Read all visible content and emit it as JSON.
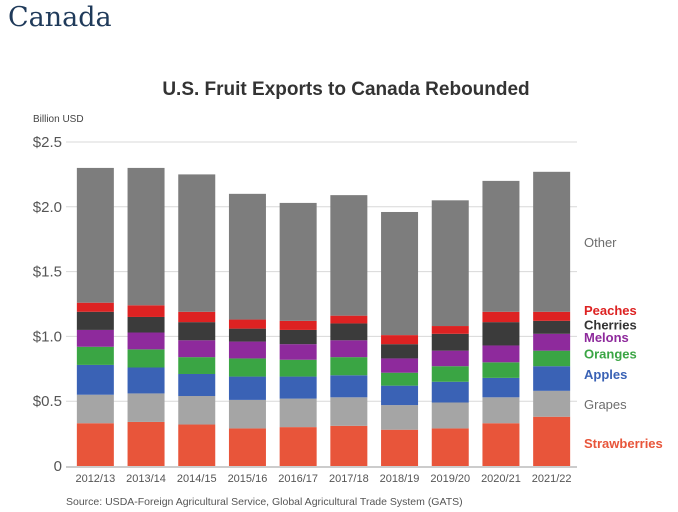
{
  "page": {
    "heading": "Canada"
  },
  "chart_data": {
    "type": "bar",
    "stacked": true,
    "title": "U.S. Fruit Exports to Canada Rebounded",
    "ylabel": "Billion USD",
    "xlabel": "",
    "ylim": [
      0,
      2.5
    ],
    "yticks": [
      0,
      0.5,
      1.0,
      1.5,
      2.0,
      2.5
    ],
    "ytick_labels": [
      "0",
      "$0.5",
      "$1.0",
      "$1.5",
      "$2.0",
      "$2.5"
    ],
    "grid": true,
    "legend_placement": "right",
    "source": "Source: USDA-Foreign Agricultural Service, Global Agricultural Trade System (GATS)",
    "categories": [
      "2012/13",
      "2013/14",
      "2014/15",
      "2015/16",
      "2016/17",
      "2017/18",
      "2018/19",
      "2019/20",
      "2020/21",
      "2021/22"
    ],
    "series": [
      {
        "name": "Strawberries",
        "color": "#e8553a",
        "values": [
          0.33,
          0.34,
          0.32,
          0.29,
          0.3,
          0.31,
          0.28,
          0.29,
          0.33,
          0.38
        ]
      },
      {
        "name": "Grapes",
        "color": "#a5a5a5",
        "values": [
          0.22,
          0.22,
          0.22,
          0.22,
          0.22,
          0.22,
          0.19,
          0.2,
          0.2,
          0.2
        ]
      },
      {
        "name": "Apples",
        "color": "#3a62b5",
        "values": [
          0.23,
          0.2,
          0.17,
          0.18,
          0.17,
          0.17,
          0.15,
          0.16,
          0.15,
          0.19
        ]
      },
      {
        "name": "Oranges",
        "color": "#3aa544",
        "values": [
          0.14,
          0.14,
          0.13,
          0.14,
          0.13,
          0.14,
          0.1,
          0.12,
          0.12,
          0.12
        ]
      },
      {
        "name": "Melons",
        "color": "#8e2a9c",
        "values": [
          0.13,
          0.13,
          0.13,
          0.13,
          0.12,
          0.13,
          0.11,
          0.12,
          0.13,
          0.13
        ]
      },
      {
        "name": "Cherries",
        "color": "#3b3b3b",
        "values": [
          0.14,
          0.12,
          0.14,
          0.1,
          0.11,
          0.13,
          0.11,
          0.13,
          0.18,
          0.1
        ]
      },
      {
        "name": "Peaches",
        "color": "#dd2222",
        "values": [
          0.07,
          0.09,
          0.08,
          0.07,
          0.07,
          0.06,
          0.07,
          0.06,
          0.08,
          0.07
        ]
      },
      {
        "name": "Other",
        "color": "#7d7d7d",
        "values": [
          1.04,
          1.06,
          1.06,
          0.97,
          0.91,
          0.93,
          0.95,
          0.97,
          1.01,
          1.08
        ]
      }
    ]
  }
}
